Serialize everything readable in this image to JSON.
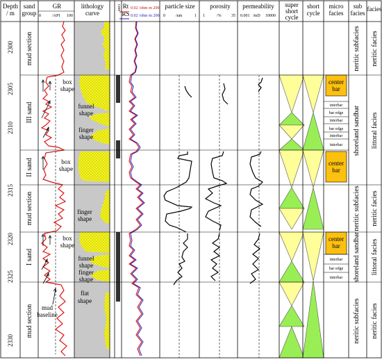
{
  "headers": {
    "depth": [
      "Depth",
      "/ m"
    ],
    "sand_group": [
      "sand",
      "group"
    ],
    "gr": "GR",
    "gr_scale": [
      "0",
      "/API",
      "100"
    ],
    "lithology": [
      "lithology",
      "curve"
    ],
    "core": "core",
    "rt": "Rt",
    "rs": "RS",
    "rt_scale": "0.02 /ohm·m 200",
    "rs_scale": "0.02 /ohm·m 200",
    "particle_size": "particle size",
    "particle_scale": [
      "0",
      "/um",
      "1"
    ],
    "porosity": "porosity",
    "porosity_scale": [
      "1",
      "/%",
      "35"
    ],
    "permeability": "permeability",
    "permeability_scale": [
      "0.001",
      "/mD",
      "10000"
    ],
    "super_short_cycle": [
      "super",
      "short",
      "cycle"
    ],
    "short_cycle": [
      "short",
      "cycle"
    ],
    "micro_facies": [
      "micro",
      "facies"
    ],
    "sub_facies": [
      "sub",
      "facies"
    ],
    "facies": "facies"
  },
  "depth_ticks": [
    "2300",
    "2305",
    "2310",
    "2315",
    "2320",
    "2325",
    "2330"
  ],
  "sand_groups": [
    "mud section",
    "III sand",
    "II sand",
    "mud section",
    "I sand",
    "mud section"
  ],
  "shape_labels": {
    "box1": [
      "box",
      "shape"
    ],
    "funnel1": [
      "funnel",
      "shape"
    ],
    "finger1": [
      "finger",
      "shape"
    ],
    "box2": [
      "box",
      "shape"
    ],
    "finger2": [
      "finger",
      "shape"
    ],
    "box3": [
      "box",
      "shape"
    ],
    "funnel2": [
      "funnel",
      "shape"
    ],
    "finger3": [
      "finger",
      "shape"
    ],
    "flat": [
      "flat",
      "shape"
    ],
    "mud_baseline": [
      "mud",
      "baseline"
    ]
  },
  "micro_facies": {
    "center_bar": [
      "center",
      "bar"
    ],
    "interbar": "interbar",
    "bar_edge": "bar edge"
  },
  "sub_facies": {
    "neritic": "neritic subfacies",
    "shoreland": "shoreland sandbar"
  },
  "facies": {
    "neritic": "neritic facies",
    "littoral": "littoral facies"
  },
  "colors": {
    "sand": "#f5f51e",
    "mud": "#c8c8c8",
    "center_bar": "#fcc010",
    "gr_curve": "#e01010",
    "rt_curve": "#e01010",
    "rs_curve": "#2020c0",
    "super_triangle": "#ffff99",
    "short_triangle": "#99ee55",
    "core": "#303030"
  }
}
